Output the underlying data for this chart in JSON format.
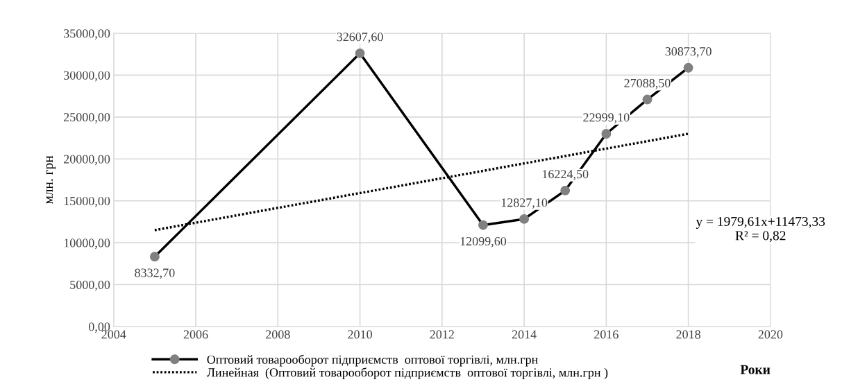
{
  "chart_data": {
    "type": "line",
    "ylabel": "млн. грн",
    "xlabel": "Роки",
    "x": [
      2005,
      2010,
      2013,
      2014,
      2015,
      2016,
      2017,
      2018
    ],
    "series": [
      {
        "name": "Оптовий товарооборот підприємств  оптової торгівлі, млн.грн",
        "color": "#000000",
        "values": [
          8332.7,
          32607.6,
          12099.6,
          12827.1,
          16224.5,
          22999.1,
          27088.5,
          30873.7
        ],
        "marker": "circle",
        "line_style": "solid",
        "value_labels": [
          "8332,70",
          "32607,60",
          "12099,60",
          "12827,10",
          "16224,50",
          "22999,10",
          "27088,50",
          "30873,70"
        ]
      },
      {
        "name": "Линейная  (Оптовий товарооборот підприємств  оптової торгівлі, млн.грн )",
        "color": "#000000",
        "x": [
          2005,
          2018
        ],
        "values": [
          11500,
          23000
        ],
        "marker": "none",
        "line_style": "dotted"
      }
    ],
    "annotations": [
      "y = 1979,61x+11473,33\nR² = 0,82"
    ],
    "xlim": [
      2004,
      2020
    ],
    "xticks": [
      2004,
      2006,
      2008,
      2010,
      2012,
      2014,
      2016,
      2018,
      2020
    ],
    "ylim": [
      0,
      35000
    ],
    "yticks": [
      {
        "value": 0,
        "label": "0,00"
      },
      {
        "value": 5000,
        "label": "5000,00"
      },
      {
        "value": 10000,
        "label": "10000,00"
      },
      {
        "value": 15000,
        "label": "15000,00"
      },
      {
        "value": 20000,
        "label": "20000,00"
      },
      {
        "value": 25000,
        "label": "25000,00"
      },
      {
        "value": 30000,
        "label": "30000,00"
      },
      {
        "value": 35000,
        "label": "35000,00"
      }
    ],
    "grid": true,
    "legend": "bottom"
  }
}
